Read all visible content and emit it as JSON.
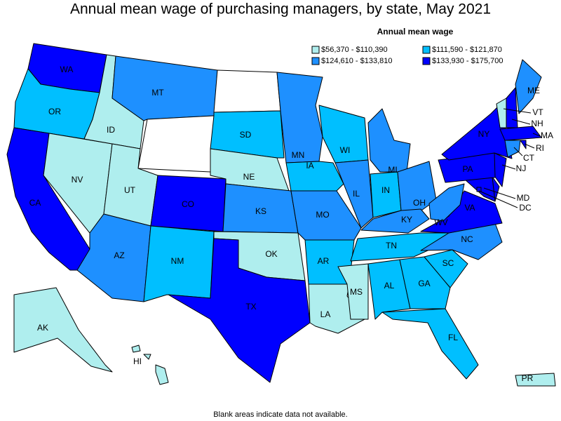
{
  "title": "Annual mean wage of purchasing managers, by state, May 2021",
  "legend": {
    "title": "Annual mean wage",
    "items": [
      {
        "label": "$56,370 - $110,390",
        "color": "#afeeee"
      },
      {
        "label": "$111,590 - $121,870",
        "color": "#00bfff"
      },
      {
        "label": "$124,610 - $133,810",
        "color": "#1e90ff"
      },
      {
        "label": "$133,930 - $175,700",
        "color": "#0000ff"
      }
    ]
  },
  "states": [
    {
      "abbr": "WA",
      "color": "#0000ff"
    },
    {
      "abbr": "OR",
      "color": "#00bfff"
    },
    {
      "abbr": "CA",
      "color": "#0000ff"
    },
    {
      "abbr": "NV",
      "color": "#afeeee"
    },
    {
      "abbr": "ID",
      "color": "#afeeee"
    },
    {
      "abbr": "MT",
      "color": "#1e90ff"
    },
    {
      "color": "#ffffff"
    },
    {
      "abbr": "UT",
      "color": "#afeeee"
    },
    {
      "abbr": "AZ",
      "color": "#1e90ff"
    },
    {
      "abbr": "CO",
      "color": "#0000ff"
    },
    {
      "abbr": "NM",
      "color": "#00bfff"
    },
    {
      "color": "#ffffff"
    },
    {
      "abbr": "SD",
      "color": "#00bfff"
    },
    {
      "abbr": "NE",
      "color": "#afeeee"
    },
    {
      "abbr": "KS",
      "color": "#1e90ff"
    },
    {
      "abbr": "OK",
      "color": "#afeeee"
    },
    {
      "abbr": "TX",
      "color": "#0000ff"
    },
    {
      "abbr": "MN",
      "color": "#1e90ff"
    },
    {
      "abbr": "IA",
      "color": "#00bfff"
    },
    {
      "abbr": "MO",
      "color": "#1e90ff"
    },
    {
      "abbr": "AR",
      "color": "#00bfff"
    },
    {
      "abbr": "LA",
      "color": "#afeeee"
    },
    {
      "abbr": "WI",
      "color": "#00bfff"
    },
    {
      "abbr": "IL",
      "color": "#1e90ff"
    },
    {
      "abbr": "MI",
      "color": "#1e90ff"
    },
    {
      "abbr": "IN",
      "color": "#00bfff"
    },
    {
      "abbr": "OH",
      "color": "#1e90ff"
    },
    {
      "abbr": "KY",
      "color": "#1e90ff"
    },
    {
      "abbr": "TN",
      "color": "#00bfff"
    },
    {
      "abbr": "MS",
      "color": "#afeeee"
    },
    {
      "abbr": "AL",
      "color": "#00bfff"
    },
    {
      "abbr": "GA",
      "color": "#00bfff"
    },
    {
      "abbr": "FL",
      "color": "#00bfff"
    },
    {
      "abbr": "SC",
      "color": "#00bfff"
    },
    {
      "abbr": "NC",
      "color": "#1e90ff"
    },
    {
      "abbr": "VA",
      "color": "#0000ff"
    },
    {
      "abbr": "WV",
      "color": "#1e90ff"
    },
    {
      "abbr": "MD",
      "color": "#0000ff"
    },
    {
      "color": "#0000ff"
    },
    {
      "abbr": "PA",
      "color": "#0000ff"
    },
    {
      "abbr": "NJ",
      "color": "#0000ff"
    },
    {
      "abbr": "NY",
      "color": "#0000ff"
    },
    {
      "abbr": "VT",
      "color": "#afeeee"
    },
    {
      "abbr": "NH",
      "color": "#0000ff"
    },
    {
      "abbr": "ME",
      "color": "#1e90ff"
    },
    {
      "abbr": "MA",
      "color": "#0000ff"
    },
    {
      "abbr": "CT",
      "color": "#1e90ff"
    },
    {
      "abbr": "RI",
      "color": "#0000ff"
    },
    {
      "abbr": "DC",
      "color": "#0000ff"
    },
    {
      "abbr": "AK",
      "color": "#afeeee"
    },
    {
      "abbr": "HI",
      "color": "#afeeee"
    },
    {
      "abbr": "PR",
      "color": "#afeeee"
    }
  ],
  "footnote": "Blank areas indicate data not available."
}
